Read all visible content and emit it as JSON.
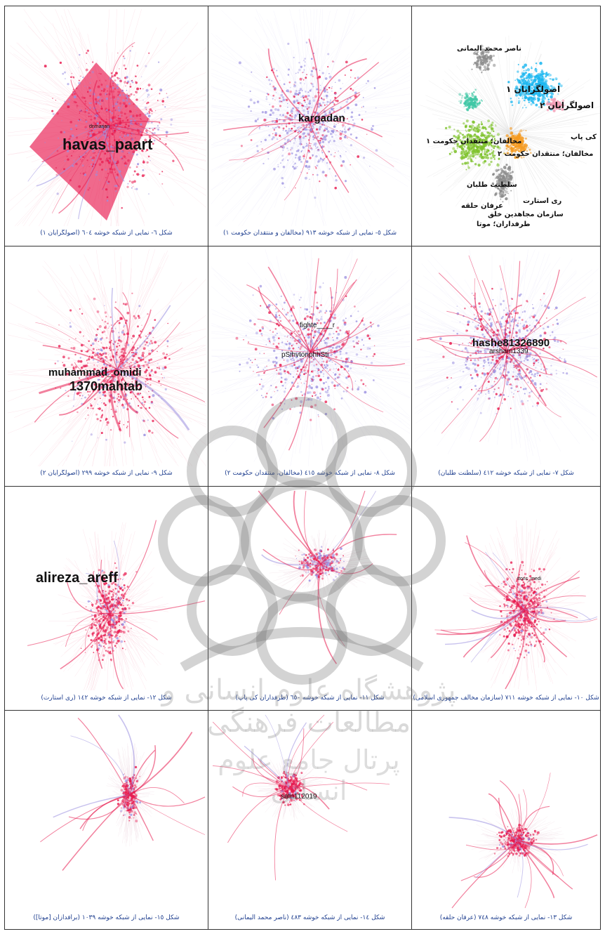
{
  "panels": [
    {
      "caption": "شکل ٦- نمایی از شبکه خوشه ٦٠٤ (اصولگرایان ١)",
      "labels": [
        "dnmarjan",
        "havas_paart"
      ]
    },
    {
      "caption": "شکل ٥- نمایی از شبکه خوشه ٩١٣ (مخالفان و منتقدان حکومت ١)",
      "labels": [
        "kargadan"
      ]
    },
    {
      "caption": "",
      "labels": [
        "ناصر محمد الیمانی",
        "اصولگرایان ١",
        "اصولگرایان ٢",
        "کی پاپ",
        "مخالفان؛ منتقدان حکومت ١",
        "مخالفان؛ منتقدان حکومت ٢",
        "سلطنت طلبان",
        "ری استارت",
        "عرفان حلقه",
        "سازمان مجاهدین خلق",
        "طرفداران؛ موتا"
      ]
    },
    {
      "caption": "شکل ٩- نمایی از شبکه خوشه ٢٩٩ (اصولگرایان ٢)",
      "labels": [
        "muhammad_omidi",
        "1370mahtab"
      ]
    },
    {
      "caption": "شکل ٨- نمایی از شبکه خوشه ٤١٥ (مخالفان، منتقدان حکومت ٢)",
      "labels": [
        "fighte____r",
        "pSihvtoriphhSti"
      ]
    },
    {
      "caption": "شکل ٧- نمایی از شبکه خوشه ٤١٢ (سلطنت طلبان)",
      "labels": [
        "hashe81326890",
        "arsham1339"
      ]
    },
    {
      "caption": "شکل ١٢- نمایی از شبکه خوشه ١٤٢ (ری استارت)",
      "labels": [
        "alireza_areff"
      ]
    },
    {
      "caption": "شکل ١١- نمایی از شبکه خوشه ٦٥٠ (طرفداران کی پاپ)",
      "labels": []
    },
    {
      "caption": "شکل ١٠- نمایی از شبکه خوشه ٧١١ (سازمان مخالف جمهوری اسلامی)",
      "labels": [
        "ttons_medi"
      ]
    },
    {
      "caption": "شکل ١٥- نمایی از شبکه خوشه ١٠٣٩ (برافدازان [موتا])",
      "labels": []
    },
    {
      "caption": "شکل ١٤- نمایی از شبکه خوشه ٤٨٣ (ناصر محمد الیمانی)",
      "labels": [
        "satn112019"
      ]
    },
    {
      "caption": "شکل ١٣- نمایی از شبکه خوشه ٧٤٨ (عرفان حلقه)",
      "labels": []
    }
  ],
  "colors": {
    "red": "#e8194e",
    "purple": "#9a8fe0",
    "border": "#333333",
    "caption": "#1f3f8f",
    "cyan": "#1cb7f0",
    "green": "#7ec22b",
    "orange": "#f59a1f",
    "gray": "#8a8a8a",
    "pink": "#f5a0b8"
  },
  "watermark": {
    "icon": "rosette-emblem-icon",
    "line1": "پژوهشگاه علوم انسانی و مطالعات فرهنگی",
    "line2": "پرتال جامع علوم انسانی"
  }
}
